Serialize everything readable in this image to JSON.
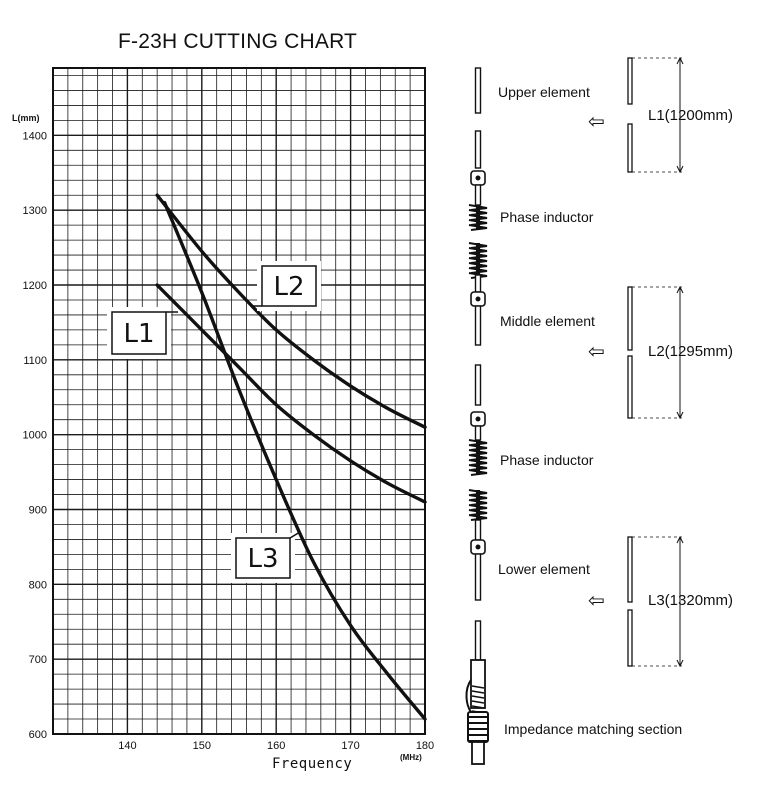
{
  "colors": {
    "ink": "#111111",
    "grid": "#1a1a1a",
    "background": "#ffffff"
  },
  "chart_data": {
    "type": "line",
    "title": "F-23H CUTTING CHART",
    "xlabel": "Frequency",
    "xunit": "(MHz)",
    "ylabel": "L(mm)",
    "xlim": [
      130,
      180
    ],
    "ylim": [
      600,
      1490
    ],
    "x_ticks": [
      140,
      150,
      160,
      170,
      180
    ],
    "y_ticks": [
      600,
      700,
      800,
      900,
      1000,
      1100,
      1200,
      1300,
      1400
    ],
    "grid": true,
    "series": [
      {
        "name": "L1",
        "x": [
          144,
          150,
          155,
          160,
          165,
          170,
          175,
          180
        ],
        "y": [
          1200,
          1140,
          1090,
          1040,
          1000,
          965,
          935,
          910
        ]
      },
      {
        "name": "L2",
        "x": [
          144,
          150,
          155,
          160,
          165,
          170,
          175,
          180
        ],
        "y": [
          1320,
          1245,
          1190,
          1140,
          1100,
          1065,
          1035,
          1010
        ]
      },
      {
        "name": "L3",
        "x": [
          145,
          150,
          155,
          160,
          165,
          170,
          175,
          180
        ],
        "y": [
          1310,
          1190,
          1060,
          940,
          830,
          745,
          680,
          620
        ]
      }
    ]
  },
  "antenna": {
    "parts": [
      {
        "label": "Upper element"
      },
      {
        "label": "Phase inductor"
      },
      {
        "label": "Middle element"
      },
      {
        "label": "Phase inductor"
      },
      {
        "label": "Lower element"
      },
      {
        "label": "Impedance matching section"
      }
    ],
    "lengths": [
      {
        "label": "L1(1200mm)"
      },
      {
        "label": "L2(1295mm)"
      },
      {
        "label": "L3(1320mm)"
      }
    ],
    "arrow_icon": "left-arrow-icon"
  }
}
